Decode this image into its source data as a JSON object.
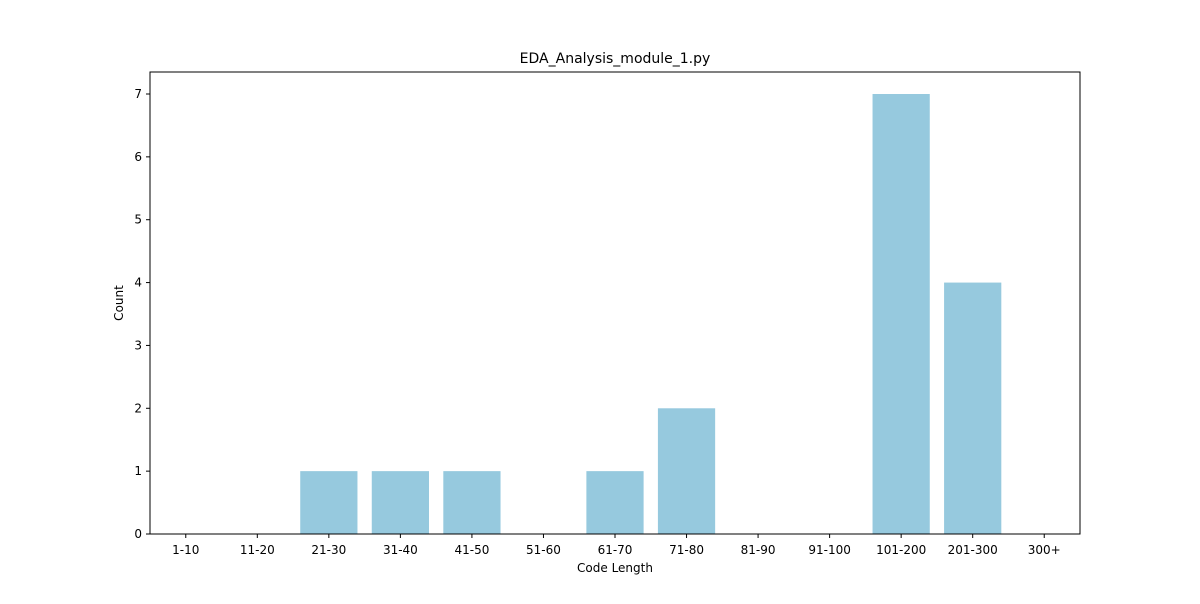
{
  "chart_data": {
    "type": "bar",
    "title": "EDA_Analysis_module_1.py",
    "xlabel": "Code Length",
    "ylabel": "Count",
    "categories": [
      "1-10",
      "11-20",
      "21-30",
      "31-40",
      "41-50",
      "51-60",
      "61-70",
      "71-80",
      "81-90",
      "91-100",
      "101-200",
      "201-300",
      "300+"
    ],
    "values": [
      0,
      0,
      1,
      1,
      1,
      0,
      1,
      2,
      0,
      0,
      7,
      4,
      0
    ],
    "ylim": [
      0,
      7.35
    ],
    "yticks": [
      0,
      1,
      2,
      3,
      4,
      5,
      6,
      7
    ],
    "grid": false,
    "legend": "none",
    "colors": {
      "bar": "#96c9de",
      "axis": "#000000",
      "background": "#ffffff"
    }
  }
}
